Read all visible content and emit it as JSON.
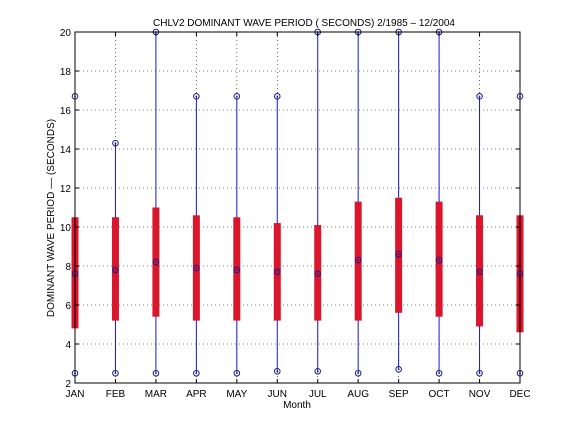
{
  "chart_data": {
    "type": "box",
    "title": "CHLV2  DOMINANT WAVE PERIOD ( SECONDS) 2/1985 – 12/2004",
    "xlabel": "Month",
    "ylabel": "DOMINANT WAVE PERIOD ––  (SECONDS)",
    "ylim": [
      2,
      20
    ],
    "yticks": [
      "2",
      "4",
      "6",
      "8",
      "10",
      "12",
      "14",
      "16",
      "18",
      "20"
    ],
    "grid": true,
    "categories": [
      "JAN",
      "FEB",
      "MAR",
      "APR",
      "MAY",
      "JUN",
      "JUL",
      "AUG",
      "SEP",
      "OCT",
      "NOV",
      "DEC"
    ],
    "min": [
      2.5,
      2.5,
      2.5,
      2.5,
      2.5,
      2.6,
      2.6,
      2.5,
      2.7,
      2.5,
      2.5,
      2.5
    ],
    "max": [
      16.7,
      14.3,
      20.0,
      16.7,
      16.7,
      16.7,
      20.0,
      20.0,
      20.0,
      20.0,
      16.7,
      16.7
    ],
    "q1": [
      4.8,
      5.2,
      5.4,
      5.2,
      5.2,
      5.2,
      5.2,
      5.2,
      5.6,
      5.4,
      4.9,
      4.6
    ],
    "q3": [
      10.5,
      10.5,
      11.0,
      10.6,
      10.5,
      10.2,
      10.1,
      11.3,
      11.5,
      11.3,
      10.6,
      10.6
    ],
    "median": [
      7.6,
      7.8,
      8.2,
      7.9,
      7.8,
      7.7,
      7.6,
      8.3,
      8.6,
      8.3,
      7.7,
      7.6
    ],
    "colors": {
      "box": "#d9162b",
      "whisker": "#1a1acd",
      "marker": "#1a1a8c",
      "grid": "#000000"
    }
  }
}
